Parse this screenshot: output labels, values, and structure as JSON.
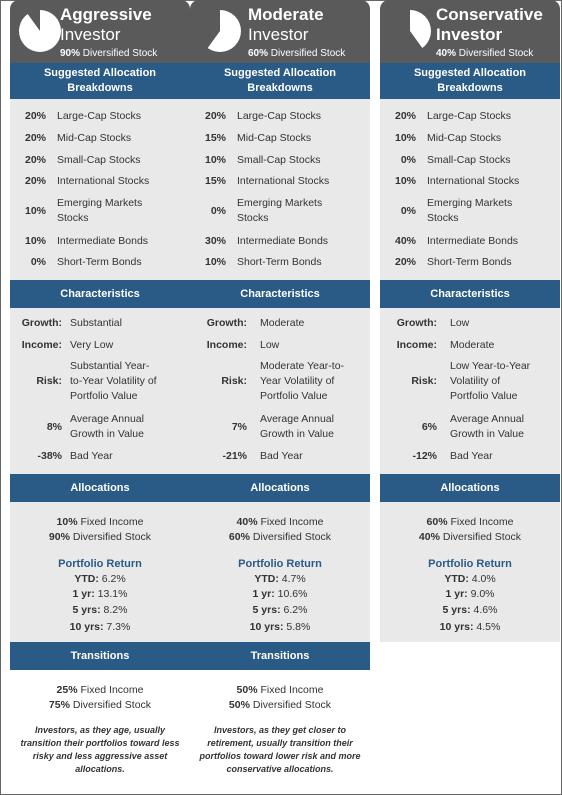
{
  "columns": [
    {
      "title_line1": "Aggressive",
      "title_line2": "Investor",
      "subtitle_pct": "90%",
      "subtitle_text": "Diversified Stock",
      "stock_fraction": 0.9,
      "allocation_heading": "Suggested Allocation Breakdowns",
      "allocations": [
        {
          "pct": "20%",
          "label": "Large-Cap Stocks"
        },
        {
          "pct": "20%",
          "label": "Mid-Cap Stocks"
        },
        {
          "pct": "20%",
          "label": "Small-Cap Stocks"
        },
        {
          "pct": "20%",
          "label": "International Stocks"
        },
        {
          "pct": "10%",
          "label": "Emerging Markets Stocks"
        },
        {
          "pct": "10%",
          "label": "Intermediate Bonds"
        },
        {
          "pct": "0%",
          "label": "Short-Term Bonds"
        }
      ],
      "characteristics_heading": "Characteristics",
      "characteristics": [
        {
          "key": "Growth:",
          "value": "Substantial"
        },
        {
          "key": "Income:",
          "value": "Very Low"
        },
        {
          "key": "Risk:",
          "value": "Substantial Year-to-Year Volatility of Portfolio Value"
        },
        {
          "key": "8%",
          "value": "Average Annual Growth in Value"
        },
        {
          "key": "-38%",
          "value": "Bad Year"
        }
      ],
      "allocations_heading": "Allocations",
      "alloc_summary": [
        {
          "pct": "10%",
          "label": "Fixed Income"
        },
        {
          "pct": "90%",
          "label": "Diversified Stock"
        }
      ],
      "portfolio_return_title": "Portfolio Return",
      "returns": [
        {
          "key": "YTD:",
          "value": "6.2%"
        },
        {
          "key": "1 yr:",
          "value": "13.1%"
        },
        {
          "key": "5 yrs:",
          "value": "8.2%"
        },
        {
          "key": "10 yrs:",
          "value": "7.3%"
        }
      ],
      "transitions_heading": "Transitions",
      "transitions": [
        {
          "pct": "25%",
          "label": "Fixed Income"
        },
        {
          "pct": "75%",
          "label": "Diversified Stock"
        }
      ],
      "note": "Investors, as they age, usually transition their portfolios toward less risky and less aggressive asset allocations."
    },
    {
      "title_line1": "Moderate",
      "title_line2": "Investor",
      "subtitle_pct": "60%",
      "subtitle_text": "Diversified Stock",
      "stock_fraction": 0.6,
      "allocation_heading": "Suggested Allocation Breakdowns",
      "allocations": [
        {
          "pct": "20%",
          "label": "Large-Cap Stocks"
        },
        {
          "pct": "15%",
          "label": "Mid-Cap Stocks"
        },
        {
          "pct": "10%",
          "label": "Small-Cap Stocks"
        },
        {
          "pct": "15%",
          "label": "International Stocks"
        },
        {
          "pct": "0%",
          "label": "Emerging Markets Stocks"
        },
        {
          "pct": "30%",
          "label": "Intermediate Bonds"
        },
        {
          "pct": "10%",
          "label": "Short-Term Bonds"
        }
      ],
      "characteristics_heading": "Characteristics",
      "characteristics": [
        {
          "key": "Growth:",
          "value": "Moderate"
        },
        {
          "key": "Income:",
          "value": "Low"
        },
        {
          "key": "Risk:",
          "value": "Moderate Year-to-Year Volatility of Portfolio Value"
        },
        {
          "key": "7%",
          "value": "Average Annual Growth in Value"
        },
        {
          "key": "-21%",
          "value": "Bad Year"
        }
      ],
      "allocations_heading": "Allocations",
      "alloc_summary": [
        {
          "pct": "40%",
          "label": "Fixed Income"
        },
        {
          "pct": "60%",
          "label": "Diversified Stock"
        }
      ],
      "portfolio_return_title": "Portfolio Return",
      "returns": [
        {
          "key": "YTD:",
          "value": "4.7%"
        },
        {
          "key": "1 yr:",
          "value": "10.6%"
        },
        {
          "key": "5 yrs:",
          "value": "6.2%"
        },
        {
          "key": "10 yrs:",
          "value": "5.8%"
        }
      ],
      "transitions_heading": "Transitions",
      "transitions": [
        {
          "pct": "50%",
          "label": "Fixed Income"
        },
        {
          "pct": "50%",
          "label": "Diversified Stock"
        }
      ],
      "note": "Investors, as they get closer to retirement, usually transition their portfolios toward lower risk and more conservative allocations."
    },
    {
      "title_line1": "Conservative",
      "title_line2": "Investor",
      "subtitle_pct": "40%",
      "subtitle_text": "Diversified Stock",
      "stock_fraction": 0.4,
      "allocation_heading": "Suggested Allocation Breakdowns",
      "allocations": [
        {
          "pct": "20%",
          "label": "Large-Cap Stocks"
        },
        {
          "pct": "10%",
          "label": "Mid-Cap Stocks"
        },
        {
          "pct": "0%",
          "label": "Small-Cap Stocks"
        },
        {
          "pct": "10%",
          "label": "International Stocks"
        },
        {
          "pct": "0%",
          "label": "Emerging Markets Stocks"
        },
        {
          "pct": "40%",
          "label": "Intermediate Bonds"
        },
        {
          "pct": "20%",
          "label": "Short-Term Bonds"
        }
      ],
      "characteristics_heading": "Characteristics",
      "characteristics": [
        {
          "key": "Growth:",
          "value": "Low"
        },
        {
          "key": "Income:",
          "value": "Moderate"
        },
        {
          "key": "Risk:",
          "value": "Low Year-to-Year Volatility of Portfolio Value"
        },
        {
          "key": "6%",
          "value": "Average Annual Growth in Value"
        },
        {
          "key": "-12%",
          "value": "Bad Year"
        }
      ],
      "allocations_heading": "Allocations",
      "alloc_summary": [
        {
          "pct": "60%",
          "label": "Fixed Income"
        },
        {
          "pct": "40%",
          "label": "Diversified Stock"
        }
      ],
      "portfolio_return_title": "Portfolio Return",
      "returns": [
        {
          "key": "YTD:",
          "value": "4.0%"
        },
        {
          "key": "1 yr:",
          "value": "9.0%"
        },
        {
          "key": "5 yrs:",
          "value": "4.6%"
        },
        {
          "key": "10 yrs:",
          "value": "4.5%"
        }
      ]
    }
  ],
  "colors": {
    "header_gray": "#5a5a5a",
    "section_blue": "#2a5a86",
    "body_gray": "#e9e9ea"
  }
}
